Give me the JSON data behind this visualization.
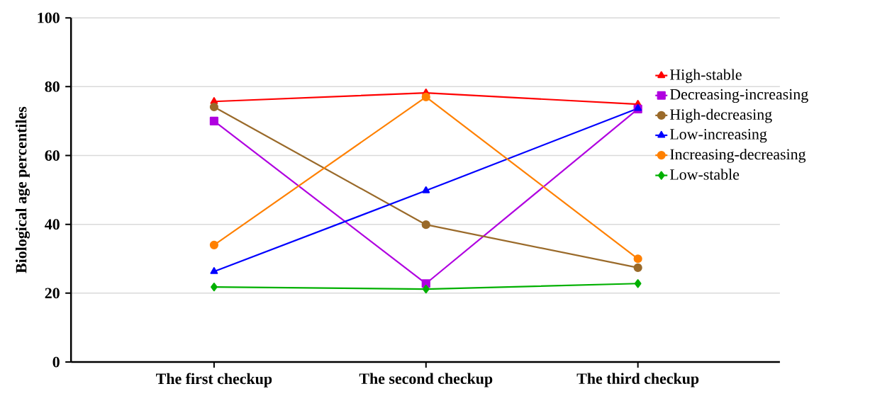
{
  "chart_data": {
    "type": "line",
    "ylabel": "Biological age percentiles",
    "categories": [
      "The first checkup",
      "The second checkup",
      "The third checkup"
    ],
    "ylim": [
      0,
      100
    ],
    "yticks": [
      0,
      20,
      40,
      60,
      80,
      100
    ],
    "grid": "y",
    "legend": "right",
    "line_style": "solid",
    "series": [
      {
        "name": "High-stable",
        "color": "#ff0000",
        "marker": "triangle",
        "values": [
          75.7,
          78.2,
          74.9
        ]
      },
      {
        "name": "Decreasing-increasing",
        "color": "#b000e0",
        "marker": "square",
        "values": [
          70.0,
          22.8,
          73.5
        ]
      },
      {
        "name": "High-decreasing",
        "color": "#9a6a2a",
        "marker": "circle",
        "values": [
          74.1,
          39.9,
          27.4
        ]
      },
      {
        "name": "Low-increasing",
        "color": "#0000ff",
        "marker": "triangle",
        "values": [
          26.3,
          49.8,
          73.7
        ]
      },
      {
        "name": "Increasing-decreasing",
        "color": "#ff8000",
        "marker": "circle",
        "values": [
          34.0,
          77.0,
          30.0
        ]
      },
      {
        "name": "Low-stable",
        "color": "#00b000",
        "marker": "diamond",
        "values": [
          21.8,
          21.2,
          22.8
        ]
      }
    ]
  }
}
